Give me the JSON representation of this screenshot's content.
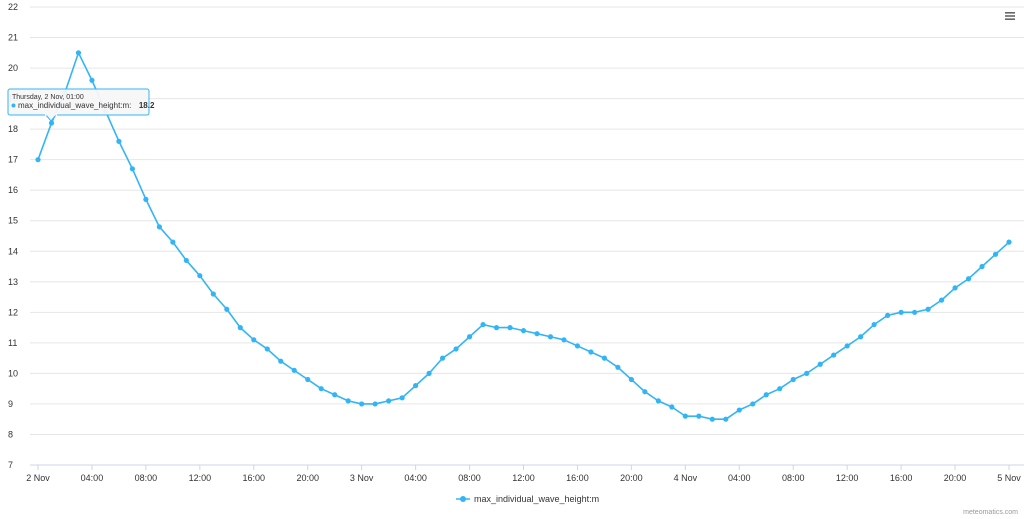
{
  "chart_data": {
    "type": "line",
    "x": [
      "2 Nov 00:00",
      "2 Nov 01:00",
      "2 Nov 02:00",
      "2 Nov 03:00",
      "2 Nov 04:00",
      "2 Nov 05:00",
      "2 Nov 06:00",
      "2 Nov 07:00",
      "2 Nov 08:00",
      "2 Nov 09:00",
      "2 Nov 10:00",
      "2 Nov 11:00",
      "2 Nov 12:00",
      "2 Nov 13:00",
      "2 Nov 14:00",
      "2 Nov 15:00",
      "2 Nov 16:00",
      "2 Nov 17:00",
      "2 Nov 18:00",
      "2 Nov 19:00",
      "2 Nov 20:00",
      "2 Nov 21:00",
      "2 Nov 22:00",
      "2 Nov 23:00",
      "3 Nov 00:00",
      "3 Nov 01:00",
      "3 Nov 02:00",
      "3 Nov 03:00",
      "3 Nov 04:00",
      "3 Nov 05:00",
      "3 Nov 06:00",
      "3 Nov 07:00",
      "3 Nov 08:00",
      "3 Nov 09:00",
      "3 Nov 10:00",
      "3 Nov 11:00",
      "3 Nov 12:00",
      "3 Nov 13:00",
      "3 Nov 14:00",
      "3 Nov 15:00",
      "3 Nov 16:00",
      "3 Nov 17:00",
      "3 Nov 18:00",
      "3 Nov 19:00",
      "3 Nov 20:00",
      "3 Nov 21:00",
      "3 Nov 22:00",
      "3 Nov 23:00",
      "4 Nov 00:00",
      "4 Nov 01:00",
      "4 Nov 02:00",
      "4 Nov 03:00",
      "4 Nov 04:00",
      "4 Nov 05:00",
      "4 Nov 06:00",
      "4 Nov 07:00",
      "4 Nov 08:00",
      "4 Nov 09:00",
      "4 Nov 10:00",
      "4 Nov 11:00",
      "4 Nov 12:00",
      "4 Nov 13:00",
      "4 Nov 14:00",
      "4 Nov 15:00",
      "4 Nov 16:00",
      "4 Nov 17:00",
      "4 Nov 18:00",
      "4 Nov 19:00",
      "4 Nov 20:00",
      "4 Nov 21:00",
      "4 Nov 22:00",
      "4 Nov 23:00",
      "5 Nov 00:00"
    ],
    "series": [
      {
        "name": "max_individual_wave_height:m",
        "color": "#33b5f5",
        "values": [
          17.0,
          18.2,
          19.2,
          20.5,
          19.6,
          18.6,
          17.6,
          16.7,
          15.7,
          14.8,
          14.3,
          13.7,
          13.2,
          12.6,
          12.1,
          11.5,
          11.1,
          10.8,
          10.4,
          10.1,
          9.8,
          9.5,
          9.3,
          9.1,
          9.0,
          9.0,
          9.1,
          9.2,
          9.6,
          10.0,
          10.5,
          10.8,
          11.2,
          11.6,
          11.5,
          11.5,
          11.4,
          11.3,
          11.2,
          11.1,
          10.9,
          10.7,
          10.5,
          10.2,
          9.8,
          9.4,
          9.1,
          8.9,
          8.6,
          8.6,
          8.5,
          8.5,
          8.8,
          9.0,
          9.3,
          9.5,
          9.8,
          10.0,
          10.3,
          10.6,
          10.9,
          11.2,
          11.6,
          11.9,
          12.0,
          12.0,
          12.1,
          12.4,
          12.8,
          13.1,
          13.5,
          13.9,
          14.3
        ]
      }
    ],
    "x_tick_labels": [
      "2 Nov",
      "04:00",
      "08:00",
      "12:00",
      "16:00",
      "20:00",
      "3 Nov",
      "04:00",
      "08:00",
      "12:00",
      "16:00",
      "20:00",
      "4 Nov",
      "04:00",
      "08:00",
      "12:00",
      "16:00",
      "20:00",
      "5 Nov"
    ],
    "y_ticks": [
      7,
      8,
      9,
      10,
      11,
      12,
      13,
      14,
      15,
      16,
      17,
      18,
      19,
      20,
      21,
      22
    ],
    "ylim": [
      7,
      22
    ],
    "grid": true,
    "legend_position": "bottom-center",
    "tooltip": {
      "date": "Thursday, 2 Nov, 01:00",
      "series_label": "max_individual_wave_height:m:",
      "value": "18.2",
      "point_index": 1
    },
    "credit": "meteomatics.com"
  },
  "menu_icon": "hamburger-menu-icon",
  "colors": {
    "series": "#33b5f5",
    "grid": "#e6e6e6",
    "axis": "#ccd6eb"
  }
}
